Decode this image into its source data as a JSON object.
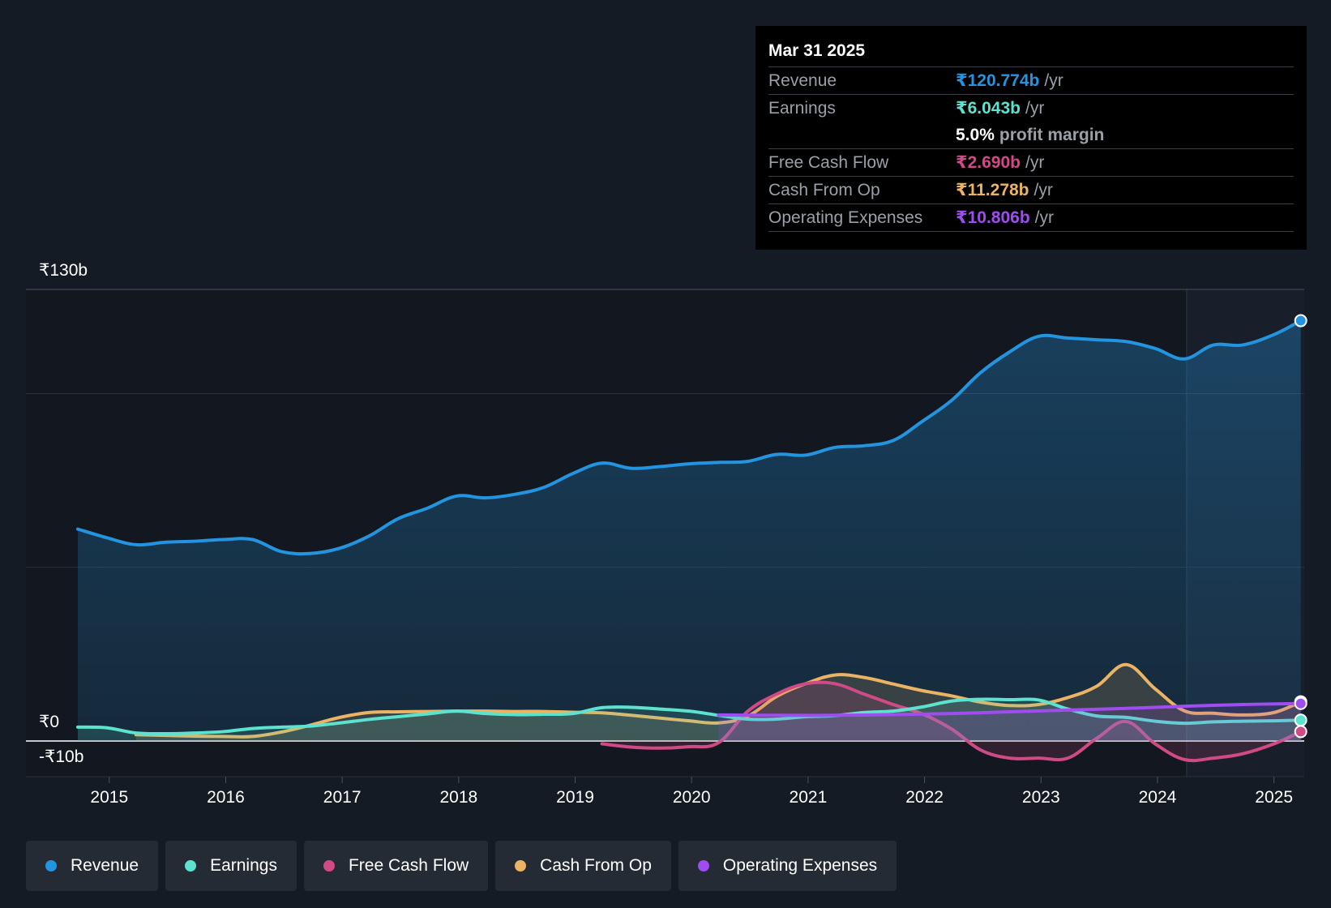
{
  "tooltip": {
    "date": "Mar 31 2025",
    "rows": [
      {
        "label": "Revenue",
        "value": "₹120.774b",
        "unit": "/yr",
        "color": "#2394df"
      },
      {
        "label": "Earnings",
        "value": "₹6.043b",
        "unit": "/yr",
        "color": "#5ce3cf"
      },
      {
        "label": "",
        "value": "5.0%",
        "unit": "profit margin",
        "color": "#ffffff"
      },
      {
        "label": "Free Cash Flow",
        "value": "₹2.690b",
        "unit": "/yr",
        "color": "#d04a86"
      },
      {
        "label": "Cash From Op",
        "value": "₹11.278b",
        "unit": "/yr",
        "color": "#eab464"
      },
      {
        "label": "Operating Expenses",
        "value": "₹10.806b",
        "unit": "/yr",
        "color": "#9f4cf0"
      }
    ]
  },
  "legend": [
    {
      "label": "Revenue",
      "color": "#2394df"
    },
    {
      "label": "Earnings",
      "color": "#5ce3cf"
    },
    {
      "label": "Free Cash Flow",
      "color": "#d04a86"
    },
    {
      "label": "Cash From Op",
      "color": "#eab464"
    },
    {
      "label": "Operating Expenses",
      "color": "#9f4cf0"
    }
  ],
  "chart_data": {
    "type": "line",
    "title": "",
    "xlabel": "",
    "ylabel": "",
    "y_top_label": "₹130b",
    "y_zero_label": "₹0",
    "y_bottom_label": "-₹10b",
    "ylim": [
      -10,
      130
    ],
    "xlim": [
      2014.73,
      2025.26
    ],
    "x_ticks": [
      2015,
      2016,
      2017,
      2018,
      2019,
      2020,
      2021,
      2022,
      2023,
      2024,
      2025
    ],
    "x_tick_labels": [
      "2015",
      "2016",
      "2017",
      "2018",
      "2019",
      "2020",
      "2021",
      "2022",
      "2023",
      "2024",
      "2025"
    ],
    "gridlines_y": [
      130,
      100,
      50,
      0
    ],
    "highlight_start_x": 2024.25,
    "series": [
      {
        "name": "Revenue",
        "color": "#2394df",
        "fill": true,
        "x": [
          2014.73,
          2014.98,
          2015.23,
          2015.48,
          2015.73,
          2015.98,
          2016.23,
          2016.48,
          2016.73,
          2016.98,
          2017.23,
          2017.48,
          2017.73,
          2017.98,
          2018.23,
          2018.48,
          2018.73,
          2018.98,
          2019.23,
          2019.48,
          2019.73,
          2019.98,
          2020.23,
          2020.48,
          2020.73,
          2020.98,
          2021.23,
          2021.48,
          2021.73,
          2021.98,
          2022.23,
          2022.48,
          2022.73,
          2022.98,
          2023.23,
          2023.48,
          2023.73,
          2023.98,
          2024.23,
          2024.48,
          2024.73,
          2025.0,
          2025.23
        ],
        "values": [
          61,
          58.5,
          56.5,
          57.2,
          57.5,
          58,
          58,
          54.5,
          54,
          55.5,
          59,
          64,
          67,
          70.5,
          70,
          71,
          73,
          77,
          80,
          78.5,
          79,
          79.8,
          80.2,
          80.5,
          82.5,
          82.3,
          84.5,
          85,
          86.5,
          92,
          98,
          106,
          112,
          116.5,
          116,
          115.5,
          115,
          113,
          110,
          114,
          114,
          117,
          121
        ]
      },
      {
        "name": "Earnings",
        "color": "#5ce3cf",
        "fill": true,
        "x": [
          2014.73,
          2014.98,
          2015.23,
          2015.48,
          2015.73,
          2015.98,
          2016.23,
          2016.48,
          2016.73,
          2016.98,
          2017.23,
          2017.48,
          2017.73,
          2017.98,
          2018.23,
          2018.48,
          2018.73,
          2018.98,
          2019.23,
          2019.48,
          2019.73,
          2019.98,
          2020.23,
          2020.48,
          2020.73,
          2020.98,
          2021.23,
          2021.48,
          2021.73,
          2021.98,
          2022.23,
          2022.48,
          2022.73,
          2022.98,
          2023.23,
          2023.48,
          2023.73,
          2023.98,
          2024.23,
          2024.48,
          2024.73,
          2025.0,
          2025.23
        ],
        "values": [
          4,
          3.8,
          2.3,
          2.1,
          2.3,
          2.7,
          3.6,
          4,
          4.3,
          5.2,
          6.2,
          7,
          7.8,
          8.6,
          7.9,
          7.6,
          7.7,
          7.9,
          9.6,
          9.7,
          9.2,
          8.6,
          7.4,
          6.3,
          6.3,
          7,
          7.3,
          8.2,
          8.6,
          9.8,
          11.5,
          12,
          11.9,
          11.8,
          9.2,
          7.2,
          6.8,
          5.7,
          5.1,
          5.5,
          5.7,
          5.8,
          6
        ]
      },
      {
        "name": "Free Cash Flow",
        "color": "#d04a86",
        "fill": true,
        "x": [
          2019.23,
          2019.48,
          2019.73,
          2019.98,
          2020.23,
          2020.48,
          2020.73,
          2020.98,
          2021.23,
          2021.48,
          2021.73,
          2021.98,
          2022.23,
          2022.48,
          2022.73,
          2022.98,
          2023.23,
          2023.48,
          2023.73,
          2023.98,
          2024.23,
          2024.48,
          2024.73,
          2025.0,
          2025.23
        ],
        "values": [
          -0.8,
          -1.7,
          -2,
          -1.6,
          -0.5,
          8.5,
          13.5,
          16.5,
          16.5,
          13.5,
          10.5,
          7.8,
          3.5,
          -2.5,
          -4.8,
          -4.8,
          -4.8,
          0.8,
          5.6,
          -0.8,
          -5.2,
          -4.8,
          -3.6,
          -0.8,
          2.7
        ]
      },
      {
        "name": "Cash From Op",
        "color": "#eab464",
        "fill": true,
        "x": [
          2015.23,
          2015.48,
          2015.73,
          2015.98,
          2016.23,
          2016.48,
          2016.73,
          2016.98,
          2017.23,
          2017.48,
          2017.73,
          2017.98,
          2018.23,
          2018.48,
          2018.73,
          2018.98,
          2019.23,
          2019.48,
          2019.73,
          2019.98,
          2020.23,
          2020.48,
          2020.73,
          2020.98,
          2021.23,
          2021.48,
          2021.73,
          2021.98,
          2022.23,
          2022.48,
          2022.73,
          2022.98,
          2023.23,
          2023.48,
          2023.73,
          2023.98,
          2024.23,
          2024.48,
          2024.73,
          2025.0,
          2025.23
        ],
        "values": [
          1.8,
          1.6,
          1.4,
          1.3,
          1.3,
          2.6,
          4.6,
          6.8,
          8.2,
          8.4,
          8.5,
          8.6,
          8.6,
          8.5,
          8.5,
          8.3,
          8.1,
          7.4,
          6.6,
          5.8,
          5.2,
          7.1,
          12.8,
          16.5,
          19,
          18.3,
          16.4,
          14.5,
          13,
          11.2,
          10.2,
          10.5,
          12.5,
          15.8,
          22,
          15,
          8.7,
          8,
          7.5,
          8.2,
          11.3
        ]
      },
      {
        "name": "Operating Expenses",
        "color": "#9f4cf0",
        "fill": true,
        "x": [
          2020.23,
          2020.73,
          2021.23,
          2021.73,
          2022.23,
          2022.73,
          2023.23,
          2023.73,
          2024.23,
          2024.73,
          2025.23
        ],
        "values": [
          7.5,
          7.4,
          7.4,
          7.6,
          7.9,
          8.4,
          8.9,
          9.4,
          10,
          10.5,
          10.8
        ]
      }
    ]
  }
}
